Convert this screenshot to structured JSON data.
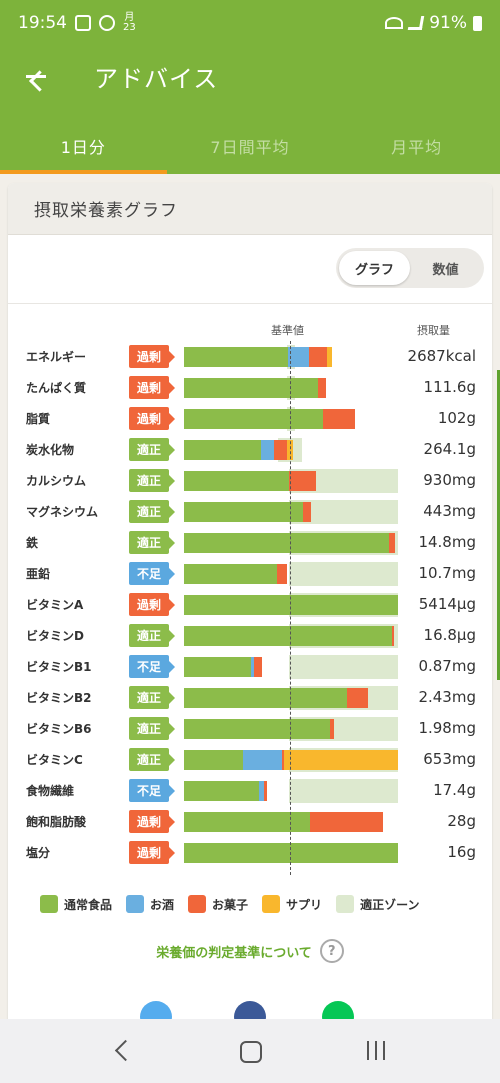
{
  "status": {
    "time": "19:54",
    "date_line1": "月",
    "date_line2": "23",
    "battery": "91%"
  },
  "appbar": {
    "title": "アドバイス"
  },
  "tabs": [
    {
      "label": "1日分",
      "active": true
    },
    {
      "label": "7日間平均",
      "active": false
    },
    {
      "label": "月平均",
      "active": false
    }
  ],
  "card": {
    "title": "摂取栄養素グラフ",
    "toggle": {
      "graph": "グラフ",
      "numbers": "数値"
    },
    "col_baseline": "基準値",
    "col_intake": "摂取量"
  },
  "colors": {
    "food": "#8cbc4a",
    "alcohol": "#6aafe0",
    "snack": "#f0663a",
    "supplement": "#f9b72d",
    "zone": "#dde9cf"
  },
  "chart_data": {
    "type": "bar",
    "stacked": true,
    "categories": [
      "エネルギー",
      "たんぱく質",
      "脂質",
      "炭水化物",
      "カルシウム",
      "マグネシウム",
      "鉄",
      "亜鉛",
      "ビタミンA",
      "ビタミンD",
      "ビタミンB1",
      "ビタミンB2",
      "ビタミンB6",
      "ビタミンC",
      "食物繊維",
      "飽和脂肪酸",
      "塩分"
    ],
    "status": [
      "過剰",
      "過剰",
      "過剰",
      "適正",
      "適正",
      "適正",
      "適正",
      "不足",
      "過剰",
      "適正",
      "不足",
      "適正",
      "適正",
      "適正",
      "不足",
      "過剰",
      "過剰"
    ],
    "status_kind": [
      "over",
      "over",
      "over",
      "ok",
      "ok",
      "ok",
      "ok",
      "under",
      "over",
      "ok",
      "under",
      "ok",
      "ok",
      "ok",
      "under",
      "over",
      "over"
    ],
    "intake": [
      "2687kcal",
      "111.6g",
      "102g",
      "264.1g",
      "930mg",
      "443mg",
      "14.8mg",
      "10.7mg",
      "5414μg",
      "16.8μg",
      "0.87mg",
      "2.43mg",
      "1.98mg",
      "653mg",
      "17.4g",
      "28g",
      "16g"
    ],
    "ratio_unit": "fraction of baseline (1.0 = 基準値)",
    "zone": [
      [
        0.96,
        1.04
      ],
      [
        0.96,
        1.04
      ],
      [
        0.96,
        1.04
      ],
      [
        0.88,
        1.1
      ],
      [
        0.98,
        2.0
      ],
      [
        0.98,
        2.0
      ],
      [
        0.98,
        2.0
      ],
      [
        0.98,
        2.0
      ],
      [
        0.98,
        2.0
      ],
      [
        0.98,
        2.0
      ],
      [
        0.98,
        2.0
      ],
      [
        0.98,
        2.0
      ],
      [
        0.98,
        2.0
      ],
      [
        0.98,
        2.0
      ],
      [
        0.98,
        2.0
      ],
      [
        0,
        0
      ],
      [
        0,
        0
      ]
    ],
    "series": [
      {
        "name": "通常食品",
        "values": [
          0.97,
          1.25,
          1.3,
          0.72,
          0.98,
          1.11,
          1.92,
          0.87,
          2.0,
          1.94,
          0.63,
          1.52,
          1.36,
          0.55,
          0.7,
          1.18,
          2.0
        ]
      },
      {
        "name": "お酒",
        "values": [
          0.2,
          0,
          0,
          0.12,
          0,
          0,
          0,
          0,
          0,
          0,
          0.02,
          0,
          0,
          0.37,
          0.05,
          0,
          0
        ]
      },
      {
        "name": "お菓子",
        "values": [
          0.17,
          0.08,
          0.3,
          0.12,
          0.25,
          0.08,
          0.05,
          0.09,
          0,
          0.02,
          0.08,
          0.2,
          0.04,
          0.01,
          0.03,
          0.68,
          0
        ]
      },
      {
        "name": "サプリ",
        "values": [
          0.04,
          0,
          0,
          0.06,
          0,
          0,
          0,
          0,
          0,
          0,
          0,
          0,
          0,
          1.07,
          0,
          0,
          0
        ]
      }
    ],
    "xlim": [
      0,
      2.0
    ]
  },
  "legend": [
    {
      "label": "通常食品",
      "color": "#8cbc4a"
    },
    {
      "label": "お酒",
      "color": "#6aafe0"
    },
    {
      "label": "お菓子",
      "color": "#f0663a"
    },
    {
      "label": "サプリ",
      "color": "#f9b72d"
    },
    {
      "label": "適正ゾーン",
      "color": "#dde9cf"
    }
  ],
  "link": {
    "label": "栄養価の判定基準について",
    "help": "?"
  },
  "share": [
    {
      "icon": "twitter-icon",
      "color": "#55acee"
    },
    {
      "icon": "facebook-icon",
      "color": "#3b5998"
    },
    {
      "icon": "line-icon",
      "color": "#06c755"
    }
  ]
}
